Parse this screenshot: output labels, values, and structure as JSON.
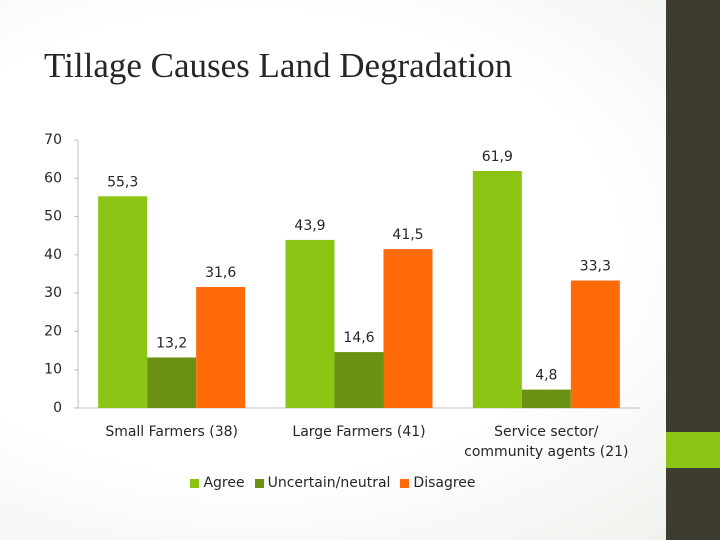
{
  "title": "Tillage Causes Land Degradation",
  "chart_data": {
    "type": "bar",
    "categories": [
      "Small Farmers (38)",
      "Large Farmers (41)",
      "Service sector/ community agents (21)"
    ],
    "series": [
      {
        "name": "Agree",
        "color": "#8cc414",
        "values": [
          55.3,
          43.9,
          61.9
        ],
        "value_labels": [
          "55,3",
          "43,9",
          "61,9"
        ]
      },
      {
        "name": "Uncertain/neutral",
        "color": "#6a9112",
        "values": [
          13.2,
          14.6,
          4.8
        ],
        "value_labels": [
          "13,2",
          "14,6",
          "4,8"
        ]
      },
      {
        "name": "Disagree",
        "color": "#ff6a0a",
        "values": [
          31.6,
          41.5,
          33.3
        ],
        "value_labels": [
          "31,6",
          "41,5",
          "33,3"
        ]
      }
    ],
    "ylim": [
      0,
      70
    ],
    "yticks": [
      0,
      10,
      20,
      30,
      40,
      50,
      60,
      70
    ],
    "legend": "bottom"
  }
}
